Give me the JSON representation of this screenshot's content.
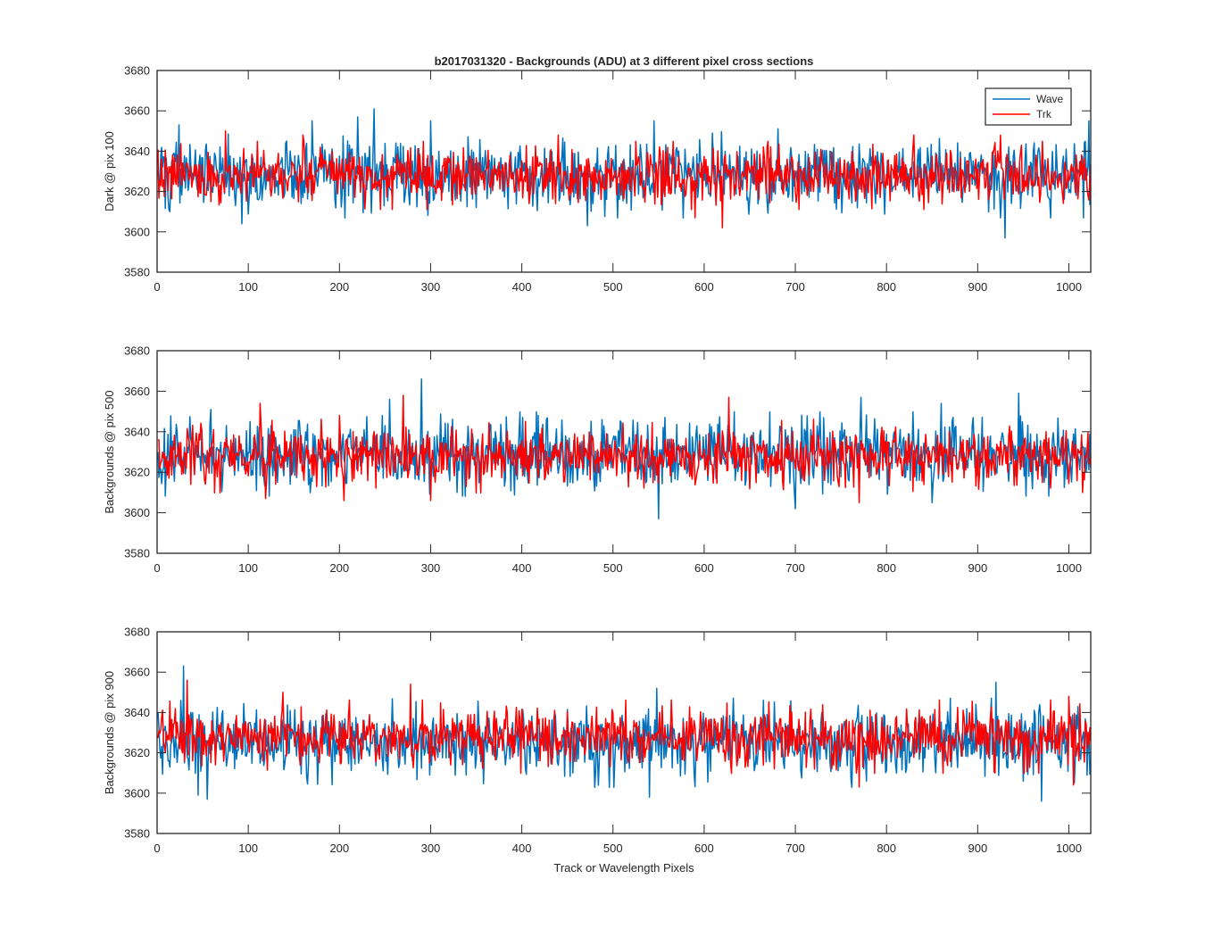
{
  "colors": {
    "wave": "#0072BD",
    "trk": "#FF0000",
    "axis": "#262626",
    "background": "#ffffff"
  },
  "chart_data": [
    {
      "type": "line",
      "title": "b2017031320 - Backgrounds (ADU) at 3 different pixel cross sections",
      "xlabel": "",
      "ylabel": "Dark @ pix 100",
      "xlim": [
        0,
        1024
      ],
      "ylim": [
        3580,
        3680
      ],
      "xticks": [
        0,
        100,
        200,
        300,
        400,
        500,
        600,
        700,
        800,
        900,
        1000
      ],
      "yticks": [
        3580,
        3600,
        3620,
        3640,
        3660,
        3680
      ],
      "grid": false,
      "legend": {
        "position": "top-right",
        "entries": [
          "Wave",
          "Trk"
        ]
      },
      "series": [
        {
          "name": "Wave",
          "x_range": [
            1,
            1024
          ],
          "mean": 3629,
          "std": 8.5,
          "seed": 101,
          "peaks": [
            [
              24,
              3653
            ],
            [
              170,
              3655
            ],
            [
              220,
              3657
            ],
            [
              238,
              3661
            ],
            [
              300,
              3655
            ],
            [
              545,
              3655
            ],
            [
              1022,
              3655
            ]
          ],
          "dips": [
            [
              93,
              3604
            ],
            [
              472,
              3603
            ],
            [
              930,
              3597
            ]
          ]
        },
        {
          "name": "Trk",
          "x_range": [
            1,
            1024
          ],
          "mean": 3628,
          "std": 6.5,
          "seed": 202,
          "peaks": [
            [
              75,
              3650
            ],
            [
              160,
              3648
            ],
            [
              440,
              3648
            ],
            [
              830,
              3648
            ],
            [
              925,
              3648
            ]
          ],
          "dips": [
            [
              620,
              3602
            ],
            [
              590,
              3607
            ]
          ]
        }
      ]
    },
    {
      "type": "line",
      "title": "",
      "xlabel": "",
      "ylabel": "Backgrounds @ pix 500",
      "xlim": [
        0,
        1024
      ],
      "ylim": [
        3580,
        3680
      ],
      "xticks": [
        0,
        100,
        200,
        300,
        400,
        500,
        600,
        700,
        800,
        900,
        1000
      ],
      "yticks": [
        3580,
        3600,
        3620,
        3640,
        3660,
        3680
      ],
      "grid": false,
      "series": [
        {
          "name": "Wave",
          "x_range": [
            1,
            1024
          ],
          "mean": 3629,
          "std": 8.0,
          "seed": 303,
          "peaks": [
            [
              59,
              3651
            ],
            [
              255,
              3656
            ],
            [
              290,
              3666
            ],
            [
              772,
              3657
            ],
            [
              860,
              3654
            ],
            [
              945,
              3659
            ]
          ],
          "dips": [
            [
              550,
              3597
            ],
            [
              700,
              3602
            ],
            [
              850,
              3605
            ]
          ]
        },
        {
          "name": "Trk",
          "x_range": [
            1,
            1024
          ],
          "mean": 3628,
          "std": 7.0,
          "seed": 404,
          "peaks": [
            [
              113,
              3654
            ],
            [
              270,
              3658
            ],
            [
              627,
              3657
            ],
            [
              200,
              3648
            ]
          ],
          "dips": [
            [
              119,
              3607
            ],
            [
              205,
              3606
            ],
            [
              300,
              3606
            ],
            [
              770,
              3605
            ],
            [
              1015,
              3610
            ]
          ]
        }
      ]
    },
    {
      "type": "line",
      "title": "",
      "xlabel": "Track or Wavelength Pixels",
      "ylabel": "Backgrounds @ pix 900",
      "xlim": [
        0,
        1024
      ],
      "ylim": [
        3580,
        3680
      ],
      "xticks": [
        0,
        100,
        200,
        300,
        400,
        500,
        600,
        700,
        800,
        900,
        1000
      ],
      "yticks": [
        3580,
        3600,
        3620,
        3640,
        3660,
        3680
      ],
      "grid": false,
      "series": [
        {
          "name": "Wave",
          "x_range": [
            1,
            1024
          ],
          "mean": 3625,
          "std": 8.5,
          "seed": 505,
          "peaks": [
            [
              29,
              3663
            ],
            [
              548,
              3652
            ],
            [
              920,
              3655
            ]
          ],
          "dips": [
            [
              45,
              3599
            ],
            [
              55,
              3597
            ],
            [
              540,
              3598
            ],
            [
              970,
              3596
            ]
          ]
        },
        {
          "name": "Trk",
          "x_range": [
            1,
            1024
          ],
          "mean": 3628,
          "std": 7.0,
          "seed": 606,
          "peaks": [
            [
              33,
              3656
            ],
            [
              138,
              3650
            ],
            [
              278,
              3654
            ],
            [
              1000,
              3648
            ]
          ],
          "dips": [
            [
              770,
              3603
            ],
            [
              1005,
              3604
            ]
          ]
        }
      ]
    }
  ]
}
